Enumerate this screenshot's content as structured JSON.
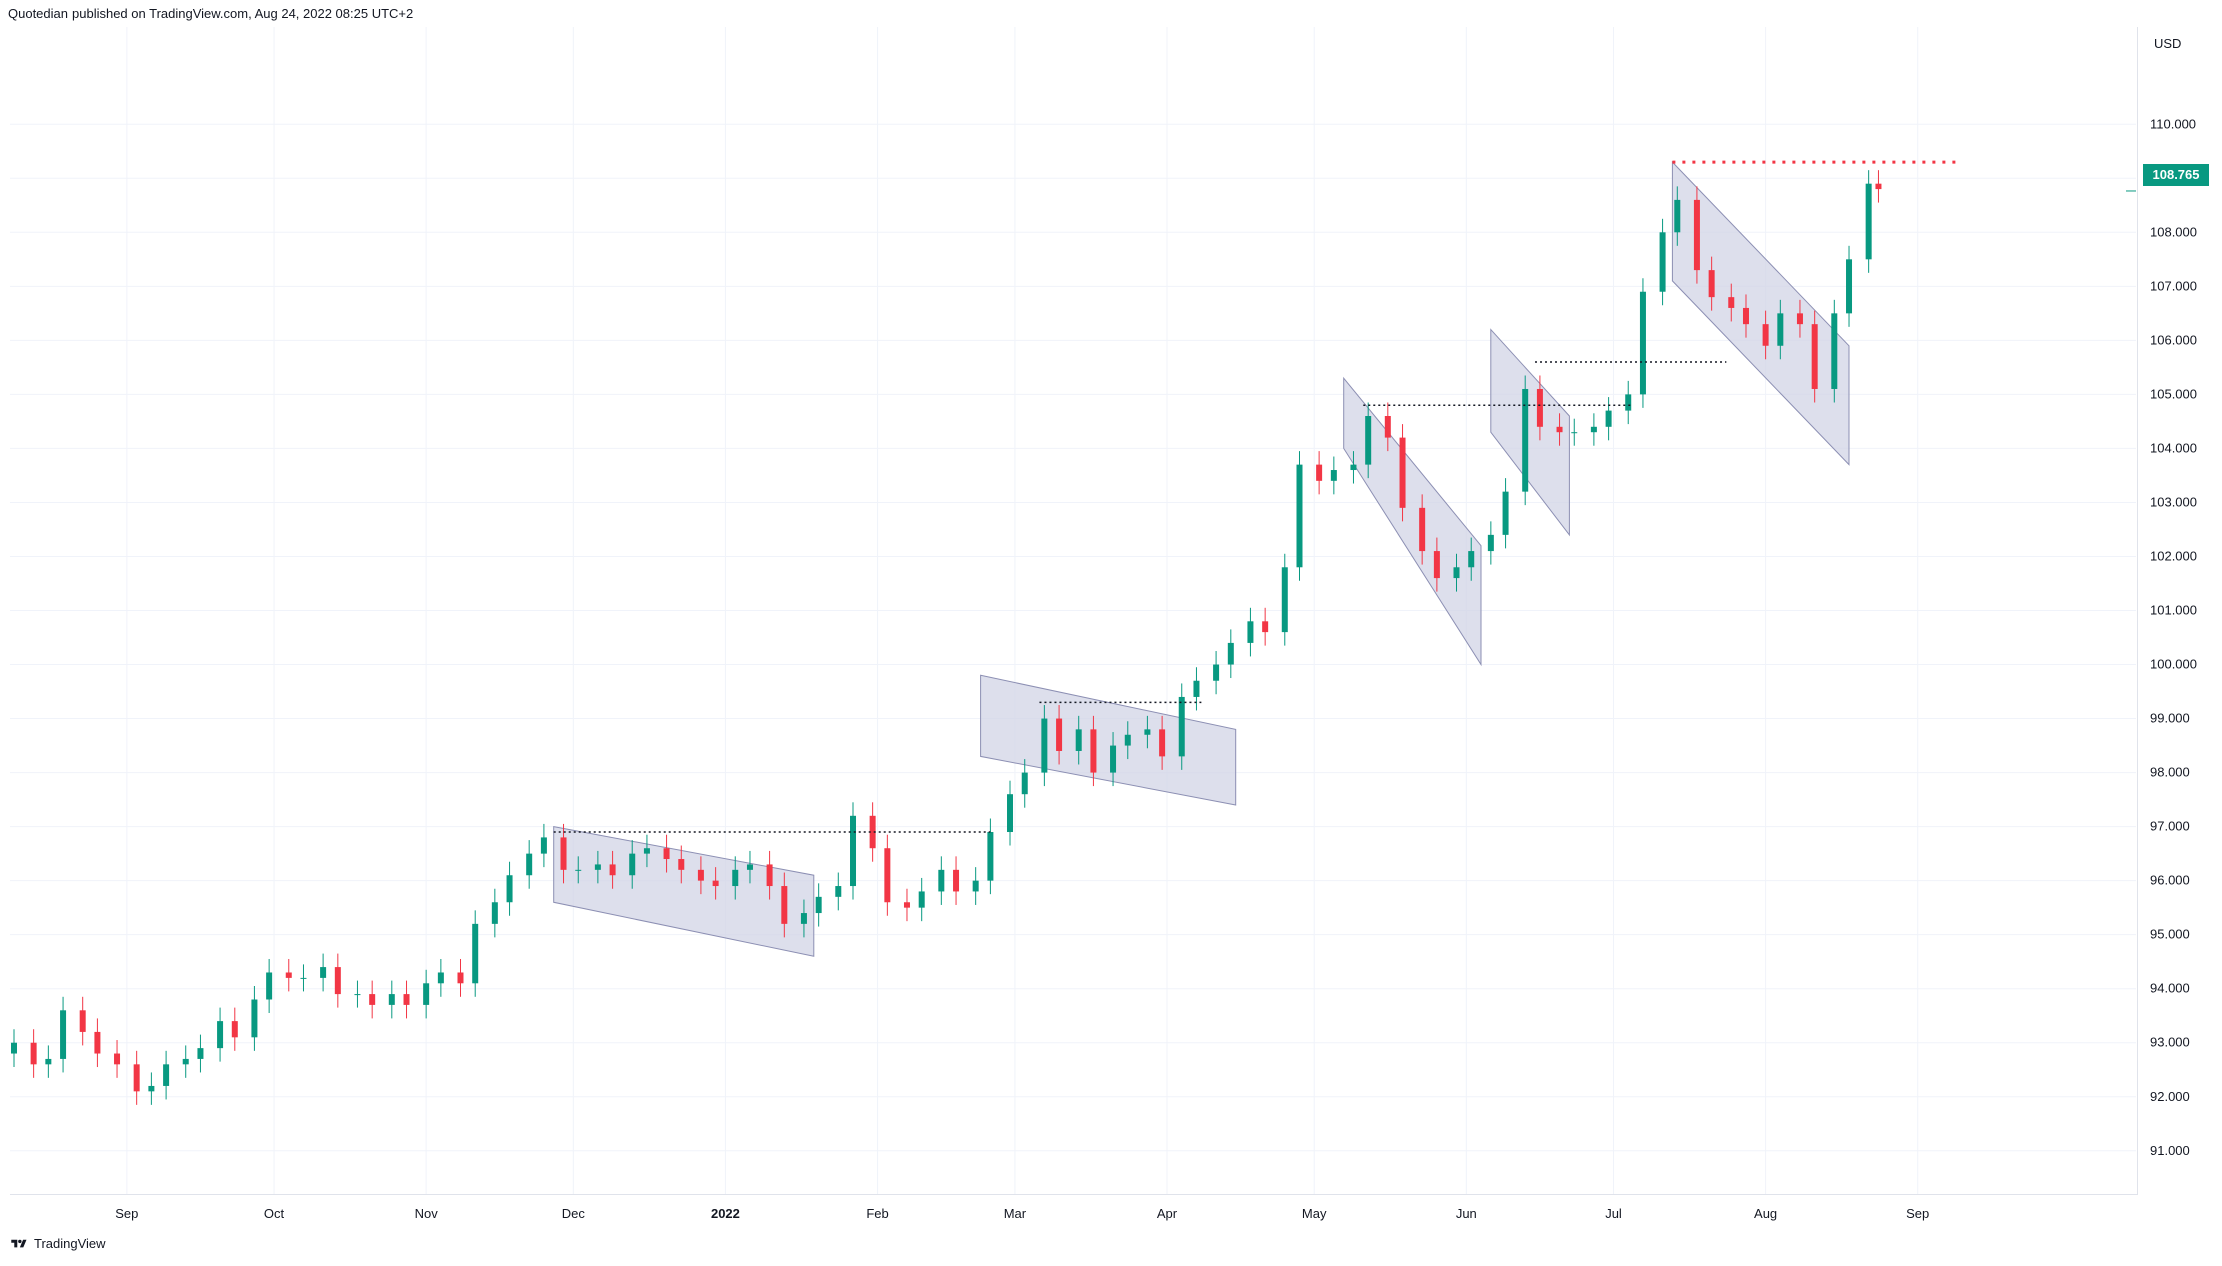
{
  "header": {
    "publisher": "Quotedian",
    "text": "published on TradingView.com, Aug 24, 2022 08:25 UTC+2"
  },
  "footer": {
    "brand": "TradingView"
  },
  "colors": {
    "up": "#089981",
    "down": "#f23645",
    "channel_fill": "#d1d4e6",
    "channel_stroke": "#8c8fb3",
    "grid": "#f0f3fa",
    "text": "#131722",
    "resistance": "#f23645"
  },
  "icons": {
    "logo": "tradingview-logo-icon"
  },
  "chart_data": {
    "type": "candlestick",
    "title": "",
    "currency": "USD",
    "last_price": "108.765",
    "ylim": [
      90.2,
      111.8
    ],
    "y_ticks": [
      "91.000",
      "92.000",
      "93.000",
      "94.000",
      "95.000",
      "96.000",
      "97.000",
      "98.000",
      "99.000",
      "100.000",
      "101.000",
      "102.000",
      "103.000",
      "104.000",
      "105.000",
      "106.000",
      "107.000",
      "108.000",
      "109.000",
      "110.000"
    ],
    "x_range": [
      "2021-08-09",
      "2022-09-30"
    ],
    "x_ticks": [
      {
        "label": "Sep",
        "date": "2021-09-01"
      },
      {
        "label": "Oct",
        "date": "2021-10-01"
      },
      {
        "label": "Nov",
        "date": "2021-11-01"
      },
      {
        "label": "Dec",
        "date": "2021-12-01"
      },
      {
        "label": "2022",
        "date": "2022-01-01",
        "bold": true
      },
      {
        "label": "Feb",
        "date": "2022-02-01"
      },
      {
        "label": "Mar",
        "date": "2022-03-01"
      },
      {
        "label": "Apr",
        "date": "2022-04-01"
      },
      {
        "label": "May",
        "date": "2022-05-01"
      },
      {
        "label": "Jun",
        "date": "2022-06-01"
      },
      {
        "label": "Jul",
        "date": "2022-07-01"
      },
      {
        "label": "Aug",
        "date": "2022-08-01"
      },
      {
        "label": "Sep",
        "date": "2022-09-01"
      }
    ],
    "closes": [
      {
        "d": "2021-08-09",
        "c": 93.0
      },
      {
        "d": "2021-08-13",
        "c": 92.6
      },
      {
        "d": "2021-08-16",
        "c": 92.7
      },
      {
        "d": "2021-08-19",
        "c": 93.6
      },
      {
        "d": "2021-08-23",
        "c": 93.2
      },
      {
        "d": "2021-08-26",
        "c": 92.8
      },
      {
        "d": "2021-08-30",
        "c": 92.6
      },
      {
        "d": "2021-09-03",
        "c": 92.1
      },
      {
        "d": "2021-09-06",
        "c": 92.2
      },
      {
        "d": "2021-09-09",
        "c": 92.6
      },
      {
        "d": "2021-09-13",
        "c": 92.7
      },
      {
        "d": "2021-09-16",
        "c": 92.9
      },
      {
        "d": "2021-09-20",
        "c": 93.4
      },
      {
        "d": "2021-09-23",
        "c": 93.1
      },
      {
        "d": "2021-09-27",
        "c": 93.8
      },
      {
        "d": "2021-09-30",
        "c": 94.3
      },
      {
        "d": "2021-10-04",
        "c": 94.2
      },
      {
        "d": "2021-10-07",
        "c": 94.2
      },
      {
        "d": "2021-10-11",
        "c": 94.4
      },
      {
        "d": "2021-10-14",
        "c": 93.9
      },
      {
        "d": "2021-10-18",
        "c": 93.9
      },
      {
        "d": "2021-10-21",
        "c": 93.7
      },
      {
        "d": "2021-10-25",
        "c": 93.9
      },
      {
        "d": "2021-10-28",
        "c": 93.7
      },
      {
        "d": "2021-11-01",
        "c": 94.1
      },
      {
        "d": "2021-11-04",
        "c": 94.3
      },
      {
        "d": "2021-11-08",
        "c": 94.1
      },
      {
        "d": "2021-11-11",
        "c": 95.2
      },
      {
        "d": "2021-11-15",
        "c": 95.6
      },
      {
        "d": "2021-11-18",
        "c": 96.1
      },
      {
        "d": "2021-11-22",
        "c": 96.5
      },
      {
        "d": "2021-11-25",
        "c": 96.8
      },
      {
        "d": "2021-11-29",
        "c": 96.2
      },
      {
        "d": "2021-12-02",
        "c": 96.2
      },
      {
        "d": "2021-12-06",
        "c": 96.3
      },
      {
        "d": "2021-12-09",
        "c": 96.1
      },
      {
        "d": "2021-12-13",
        "c": 96.5
      },
      {
        "d": "2021-12-16",
        "c": 96.6
      },
      {
        "d": "2021-12-20",
        "c": 96.4
      },
      {
        "d": "2021-12-23",
        "c": 96.2
      },
      {
        "d": "2021-12-27",
        "c": 96.0
      },
      {
        "d": "2021-12-30",
        "c": 95.9
      },
      {
        "d": "2022-01-03",
        "c": 96.2
      },
      {
        "d": "2022-01-06",
        "c": 96.3
      },
      {
        "d": "2022-01-10",
        "c": 95.9
      },
      {
        "d": "2022-01-13",
        "c": 95.2
      },
      {
        "d": "2022-01-17",
        "c": 95.4
      },
      {
        "d": "2022-01-20",
        "c": 95.7
      },
      {
        "d": "2022-01-24",
        "c": 95.9
      },
      {
        "d": "2022-01-27",
        "c": 97.2
      },
      {
        "d": "2022-01-31",
        "c": 96.6
      },
      {
        "d": "2022-02-03",
        "c": 95.6
      },
      {
        "d": "2022-02-07",
        "c": 95.5
      },
      {
        "d": "2022-02-10",
        "c": 95.8
      },
      {
        "d": "2022-02-14",
        "c": 96.2
      },
      {
        "d": "2022-02-17",
        "c": 95.8
      },
      {
        "d": "2022-02-21",
        "c": 96.0
      },
      {
        "d": "2022-02-24",
        "c": 96.9
      },
      {
        "d": "2022-02-28",
        "c": 97.6
      },
      {
        "d": "2022-03-03",
        "c": 98.0
      },
      {
        "d": "2022-03-07",
        "c": 99.0
      },
      {
        "d": "2022-03-10",
        "c": 98.4
      },
      {
        "d": "2022-03-14",
        "c": 98.8
      },
      {
        "d": "2022-03-17",
        "c": 98.0
      },
      {
        "d": "2022-03-21",
        "c": 98.5
      },
      {
        "d": "2022-03-24",
        "c": 98.7
      },
      {
        "d": "2022-03-28",
        "c": 98.8
      },
      {
        "d": "2022-03-31",
        "c": 98.3
      },
      {
        "d": "2022-04-04",
        "c": 99.4
      },
      {
        "d": "2022-04-07",
        "c": 99.7
      },
      {
        "d": "2022-04-11",
        "c": 100.0
      },
      {
        "d": "2022-04-14",
        "c": 100.4
      },
      {
        "d": "2022-04-18",
        "c": 100.8
      },
      {
        "d": "2022-04-21",
        "c": 100.6
      },
      {
        "d": "2022-04-25",
        "c": 101.8
      },
      {
        "d": "2022-04-28",
        "c": 103.7
      },
      {
        "d": "2022-05-02",
        "c": 103.4
      },
      {
        "d": "2022-05-05",
        "c": 103.6
      },
      {
        "d": "2022-05-09",
        "c": 103.7
      },
      {
        "d": "2022-05-12",
        "c": 104.6
      },
      {
        "d": "2022-05-16",
        "c": 104.2
      },
      {
        "d": "2022-05-19",
        "c": 102.9
      },
      {
        "d": "2022-05-23",
        "c": 102.1
      },
      {
        "d": "2022-05-26",
        "c": 101.6
      },
      {
        "d": "2022-05-30",
        "c": 101.8
      },
      {
        "d": "2022-06-02",
        "c": 102.1
      },
      {
        "d": "2022-06-06",
        "c": 102.4
      },
      {
        "d": "2022-06-09",
        "c": 103.2
      },
      {
        "d": "2022-06-13",
        "c": 105.1
      },
      {
        "d": "2022-06-16",
        "c": 104.4
      },
      {
        "d": "2022-06-20",
        "c": 104.3
      },
      {
        "d": "2022-06-23",
        "c": 104.3
      },
      {
        "d": "2022-06-27",
        "c": 104.4
      },
      {
        "d": "2022-06-30",
        "c": 104.7
      },
      {
        "d": "2022-07-04",
        "c": 105.0
      },
      {
        "d": "2022-07-07",
        "c": 106.9
      },
      {
        "d": "2022-07-11",
        "c": 108.0
      },
      {
        "d": "2022-07-14",
        "c": 108.6
      },
      {
        "d": "2022-07-18",
        "c": 107.3
      },
      {
        "d": "2022-07-21",
        "c": 106.8
      },
      {
        "d": "2022-07-25",
        "c": 106.6
      },
      {
        "d": "2022-07-28",
        "c": 106.3
      },
      {
        "d": "2022-08-01",
        "c": 105.9
      },
      {
        "d": "2022-08-04",
        "c": 106.5
      },
      {
        "d": "2022-08-08",
        "c": 106.3
      },
      {
        "d": "2022-08-11",
        "c": 105.1
      },
      {
        "d": "2022-08-15",
        "c": 106.5
      },
      {
        "d": "2022-08-18",
        "c": 107.5
      },
      {
        "d": "2022-08-22",
        "c": 108.9
      },
      {
        "d": "2022-08-24",
        "c": 108.8
      }
    ],
    "channels": [
      {
        "p1": {
          "d": "2021-11-27",
          "v": 97.0
        },
        "p2": {
          "d": "2022-01-19",
          "v": 96.1
        },
        "p3": {
          "d": "2021-11-27",
          "v": 95.6
        },
        "p4": {
          "d": "2022-01-19",
          "v": 94.6
        }
      },
      {
        "p1": {
          "d": "2022-02-22",
          "v": 99.8
        },
        "p2": {
          "d": "2022-04-15",
          "v": 98.8
        },
        "p3": {
          "d": "2022-02-22",
          "v": 98.3
        },
        "p4": {
          "d": "2022-04-15",
          "v": 97.4
        }
      },
      {
        "p1": {
          "d": "2022-05-07",
          "v": 105.3
        },
        "p2": {
          "d": "2022-06-04",
          "v": 102.2
        },
        "p3": {
          "d": "2022-05-07",
          "v": 104.0
        },
        "p4": {
          "d": "2022-06-04",
          "v": 100.0
        }
      },
      {
        "p1": {
          "d": "2022-06-06",
          "v": 106.2
        },
        "p2": {
          "d": "2022-06-22",
          "v": 104.6
        },
        "p3": {
          "d": "2022-06-06",
          "v": 104.3
        },
        "p4": {
          "d": "2022-06-22",
          "v": 102.4
        }
      },
      {
        "p1": {
          "d": "2022-07-13",
          "v": 109.3
        },
        "p2": {
          "d": "2022-08-18",
          "v": 105.9
        },
        "p3": {
          "d": "2022-07-13",
          "v": 107.1
        },
        "p4": {
          "d": "2022-08-18",
          "v": 103.7
        }
      }
    ],
    "levels": [
      {
        "from": "2021-11-27",
        "to": "2022-02-24",
        "v": 96.9,
        "style": "dotted",
        "color": "#131722"
      },
      {
        "from": "2022-03-06",
        "to": "2022-04-08",
        "v": 99.3,
        "style": "dotted",
        "color": "#131722"
      },
      {
        "from": "2022-05-11",
        "to": "2022-07-05",
        "v": 104.8,
        "style": "dotted",
        "color": "#131722"
      },
      {
        "from": "2022-06-15",
        "to": "2022-07-24",
        "v": 105.6,
        "style": "dotted",
        "color": "#131722"
      },
      {
        "from": "2022-07-13",
        "to": "2022-09-09",
        "v": 109.3,
        "style": "dotted-bold",
        "color": "#f23645"
      }
    ]
  }
}
